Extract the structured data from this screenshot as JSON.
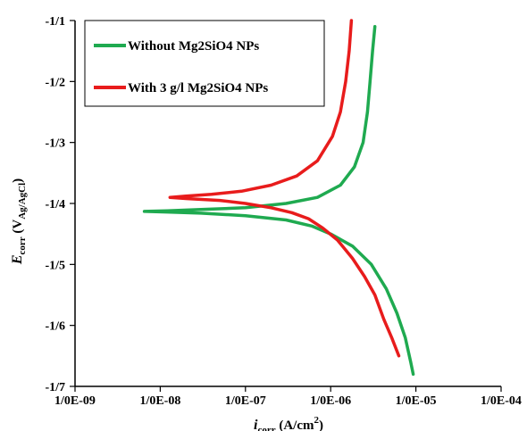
{
  "chart_data": {
    "type": "line",
    "x_scale": "log",
    "xlim": [
      1e-09,
      0.0001
    ],
    "ylim": [
      -1.7,
      -1.1
    ],
    "x_tick_labels": [
      "1/0E-09",
      "1/0E-08",
      "1/0E-07",
      "1/0E-06",
      "1/0E-05",
      "1/0E-04"
    ],
    "y_tick_labels": [
      "-1/1",
      "-1/2",
      "-1/3",
      "-1/4",
      "-1/5",
      "-1/6",
      "-1/7"
    ],
    "x_ticks": [
      1e-09,
      1e-08,
      1e-07,
      1e-06,
      1e-05,
      0.0001
    ],
    "y_ticks": [
      -1.1,
      -1.2,
      -1.3,
      -1.4,
      -1.5,
      -1.6,
      -1.7
    ],
    "xlabel": {
      "main": "i",
      "sub": "corr",
      "suffix": " (A/cm",
      "sup": "2",
      "end": ")"
    },
    "ylabel": {
      "main": "E",
      "sub": "corr",
      "paren_open": " (V",
      "sub2": "Ag/AgCl",
      "paren_close": ")"
    },
    "grid": false,
    "legend_position": "top-left",
    "series": [
      {
        "name": "Without Mg2SiO4 NPs",
        "color": "#1faa50",
        "points": [
          [
            3.3e-06,
            -1.11
          ],
          [
            3.1e-06,
            -1.15
          ],
          [
            2.9e-06,
            -1.2
          ],
          [
            2.7e-06,
            -1.25
          ],
          [
            2.4e-06,
            -1.3
          ],
          [
            1.9e-06,
            -1.34
          ],
          [
            1.3e-06,
            -1.37
          ],
          [
            7e-07,
            -1.39
          ],
          [
            3e-07,
            -1.4
          ],
          [
            1e-07,
            -1.407
          ],
          [
            3e-08,
            -1.41
          ],
          [
            1.2e-08,
            -1.412
          ],
          [
            6.5e-09,
            -1.413
          ],
          [
            1.2e-08,
            -1.414
          ],
          [
            3e-08,
            -1.416
          ],
          [
            1e-07,
            -1.42
          ],
          [
            3e-07,
            -1.427
          ],
          [
            6e-07,
            -1.437
          ],
          [
            1e-06,
            -1.45
          ],
          [
            1.8e-06,
            -1.47
          ],
          [
            3e-06,
            -1.5
          ],
          [
            4.5e-06,
            -1.54
          ],
          [
            6e-06,
            -1.58
          ],
          [
            7.5e-06,
            -1.62
          ],
          [
            8.7e-06,
            -1.66
          ],
          [
            9.3e-06,
            -1.68
          ]
        ]
      },
      {
        "name": "With 3 g/l Mg2SiO4 NPs",
        "color": "#e81c1c",
        "points": [
          [
            1.75e-06,
            -1.1
          ],
          [
            1.65e-06,
            -1.15
          ],
          [
            1.5e-06,
            -1.2
          ],
          [
            1.3e-06,
            -1.25
          ],
          [
            1.05e-06,
            -1.29
          ],
          [
            7e-07,
            -1.33
          ],
          [
            4e-07,
            -1.355
          ],
          [
            2e-07,
            -1.37
          ],
          [
            9e-08,
            -1.38
          ],
          [
            4e-08,
            -1.385
          ],
          [
            2e-08,
            -1.388
          ],
          [
            1.3e-08,
            -1.39
          ],
          [
            2e-08,
            -1.392
          ],
          [
            5e-08,
            -1.395
          ],
          [
            1e-07,
            -1.4
          ],
          [
            2e-07,
            -1.407
          ],
          [
            3.5e-07,
            -1.415
          ],
          [
            5.5e-07,
            -1.425
          ],
          [
            8e-07,
            -1.44
          ],
          [
            1.2e-06,
            -1.46
          ],
          [
            1.8e-06,
            -1.49
          ],
          [
            2.5e-06,
            -1.52
          ],
          [
            3.3e-06,
            -1.55
          ],
          [
            4.2e-06,
            -1.59
          ],
          [
            5.2e-06,
            -1.62
          ],
          [
            6.3e-06,
            -1.65
          ]
        ]
      }
    ]
  }
}
